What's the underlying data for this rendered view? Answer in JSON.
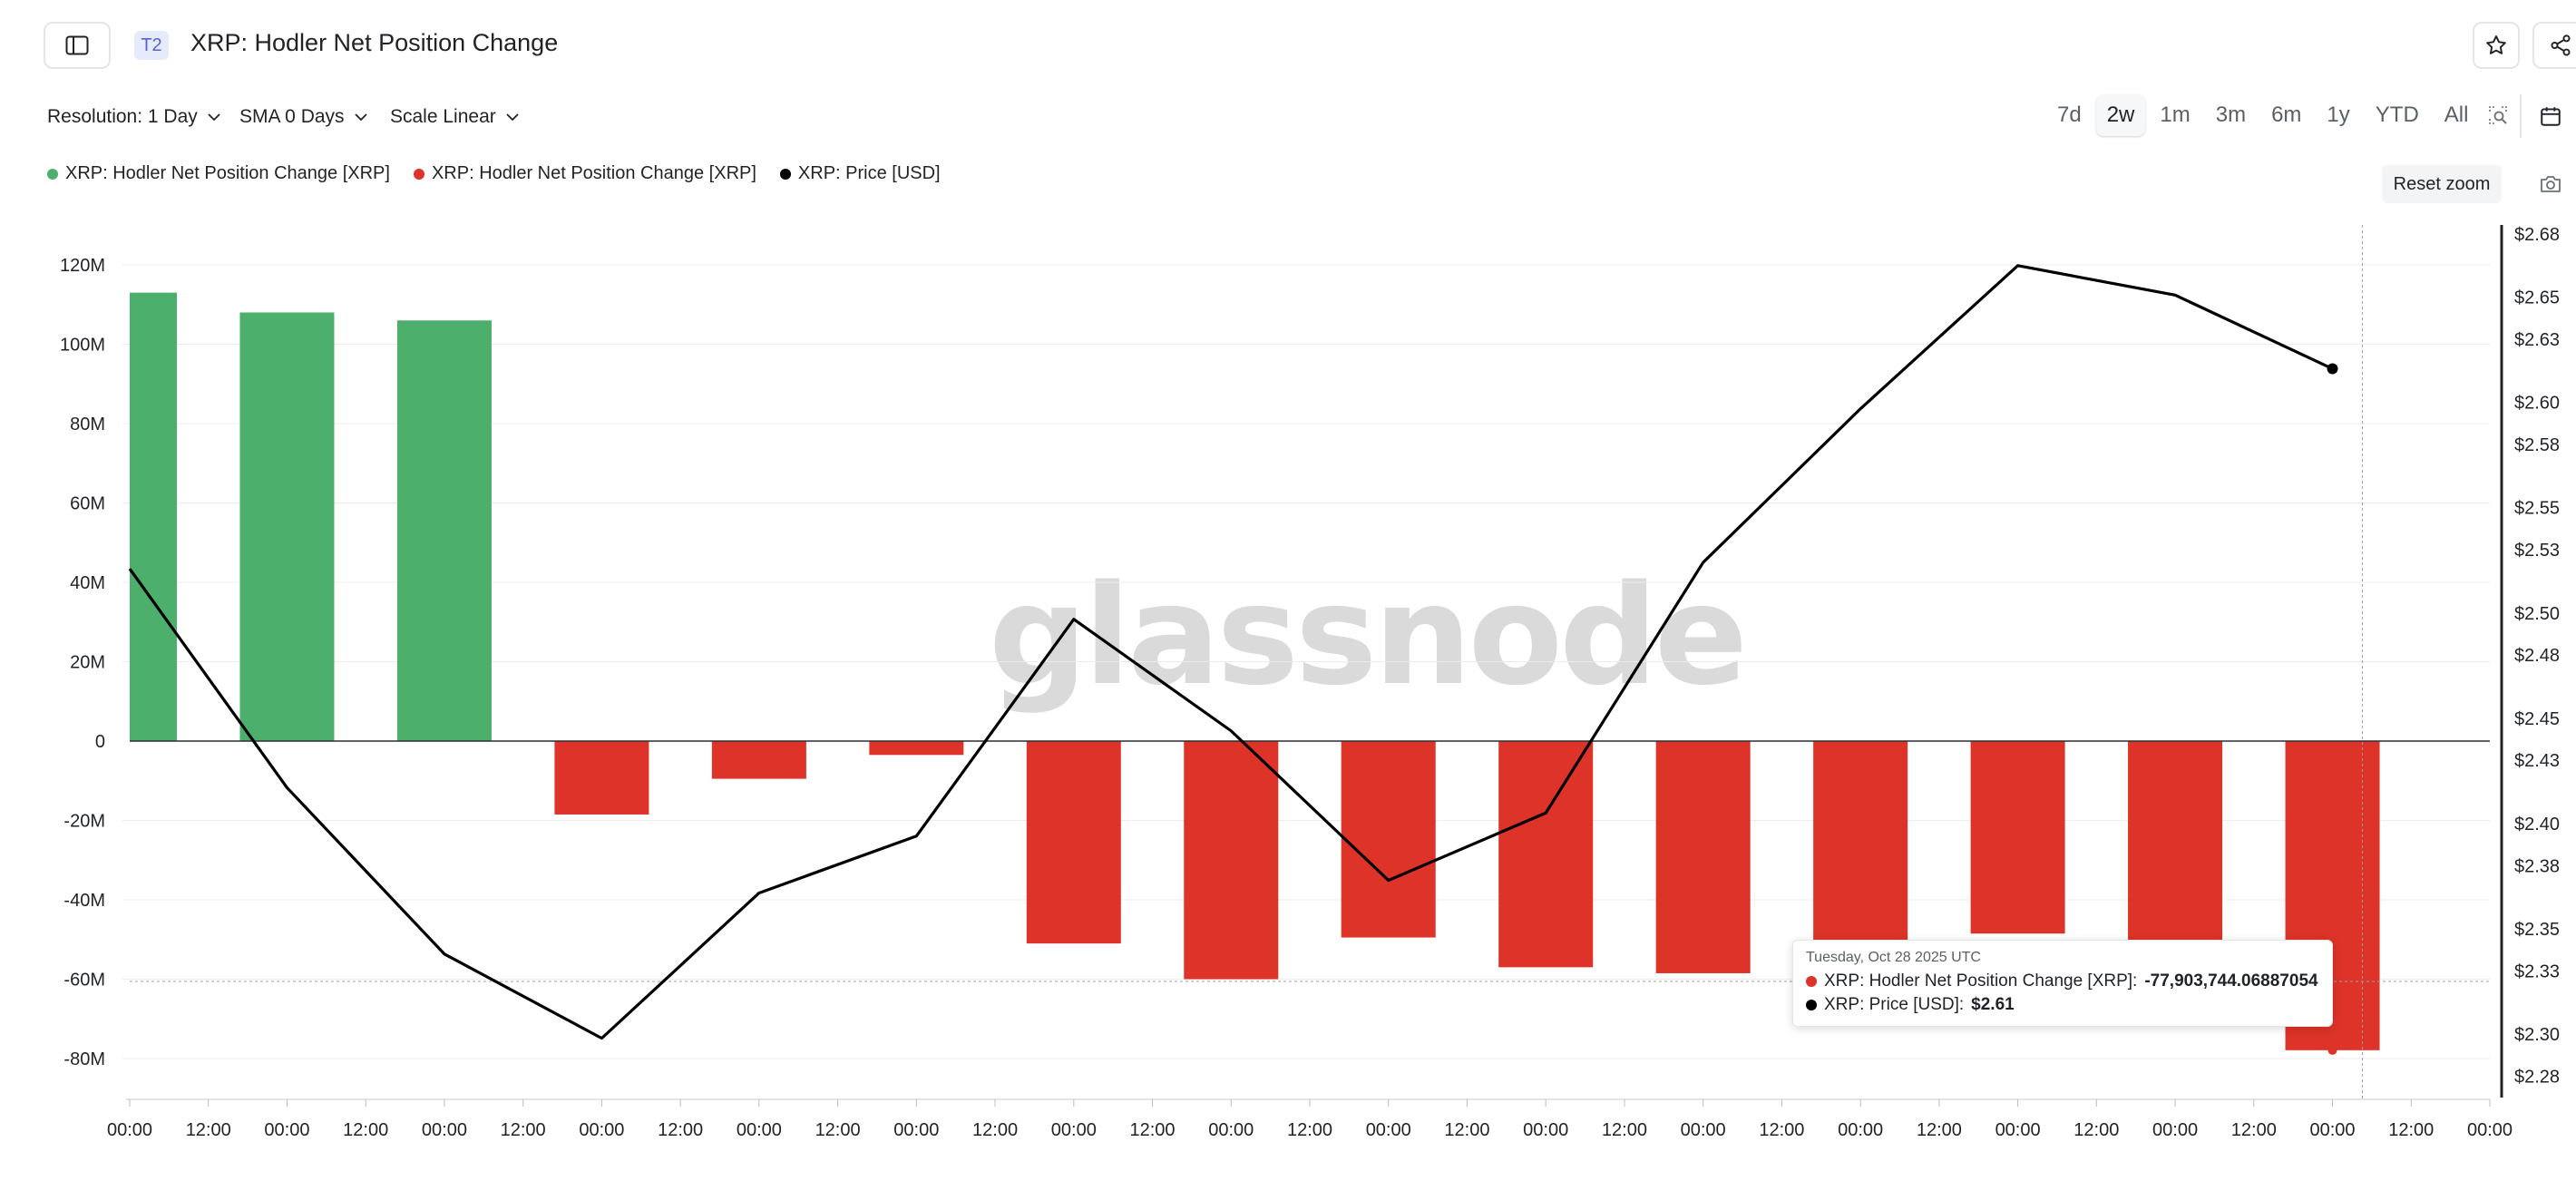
{
  "header": {
    "tier_badge": "T2",
    "title": "XRP: Hodler Net Position Change"
  },
  "controls": {
    "resolution": "Resolution: 1 Day",
    "sma": "SMA 0 Days",
    "scale": "Scale Linear",
    "timeframes": [
      "7d",
      "2w",
      "1m",
      "3m",
      "6m",
      "1y",
      "YTD",
      "All"
    ],
    "active_timeframe": "2w",
    "reset_zoom": "Reset zoom"
  },
  "legend": [
    {
      "label": "XRP: Hodler Net Position Change [XRP]",
      "color": "#4caf6b"
    },
    {
      "label": "XRP: Hodler Net Position Change [XRP]",
      "color": "#dd3328"
    },
    {
      "label": "XRP: Price [USD]",
      "color": "#000000"
    }
  ],
  "watermark": "glassnode",
  "tooltip": {
    "date": "Tuesday, Oct 28 2025 UTC",
    "net_label": "XRP: Hodler Net Position Change [XRP]: ",
    "net_value": "-77,903,744.06887054",
    "price_label": "XRP: Price [USD]: ",
    "price_value": "$2.61"
  },
  "chart_data": {
    "type": "bar",
    "title": "XRP: Hodler Net Position Change",
    "x_tick_labels": [
      "00:00",
      "12:00",
      "00:00",
      "12:00",
      "00:00",
      "12:00",
      "00:00",
      "12:00",
      "00:00",
      "12:00",
      "00:00",
      "12:00",
      "00:00",
      "12:00",
      "00:00",
      "12:00",
      "00:00",
      "12:00",
      "00:00",
      "12:00",
      "00:00",
      "12:00",
      "00:00",
      "12:00",
      "00:00",
      "12:00",
      "00:00",
      "12:00",
      "00:00",
      "12:00",
      "00:00"
    ],
    "y_left_ticks": [
      "120M",
      "100M",
      "80M",
      "60M",
      "40M",
      "20M",
      "0",
      "-20M",
      "-40M",
      "-60M",
      "-80M"
    ],
    "y_left_range": [
      -90000000,
      130000000
    ],
    "y_right_ticks": [
      "$2.68",
      "$2.65",
      "$2.63",
      "$2.60",
      "$2.58",
      "$2.55",
      "$2.53",
      "$2.50",
      "$2.48",
      "$2.45",
      "$2.43",
      "$2.40",
      "$2.38",
      "$2.35",
      "$2.33",
      "$2.30",
      "$2.28"
    ],
    "y_right_range": [
      2.275,
      2.68
    ],
    "grid": true,
    "legend_position": "top-left",
    "positive_color": "#4caf6b",
    "negative_color": "#dd3328",
    "price_color": "#000000",
    "series": [
      {
        "name": "XRP: Hodler Net Position Change [XRP]",
        "values": [
          113000000,
          108000000,
          106000000,
          -18500000,
          -9500000,
          -3500000,
          -51000000,
          -60000000,
          -49500000,
          -57000000,
          -58500000,
          -50500000,
          -48500000,
          -50500000,
          -77903744.06887054
        ]
      },
      {
        "name": "XRP: Price [USD]",
        "values": [
          2.521,
          2.417,
          2.338,
          2.298,
          2.367,
          2.394,
          2.497,
          2.444,
          2.373,
          2.405,
          2.524,
          2.597,
          2.665,
          2.651,
          2.616
        ]
      }
    ]
  }
}
